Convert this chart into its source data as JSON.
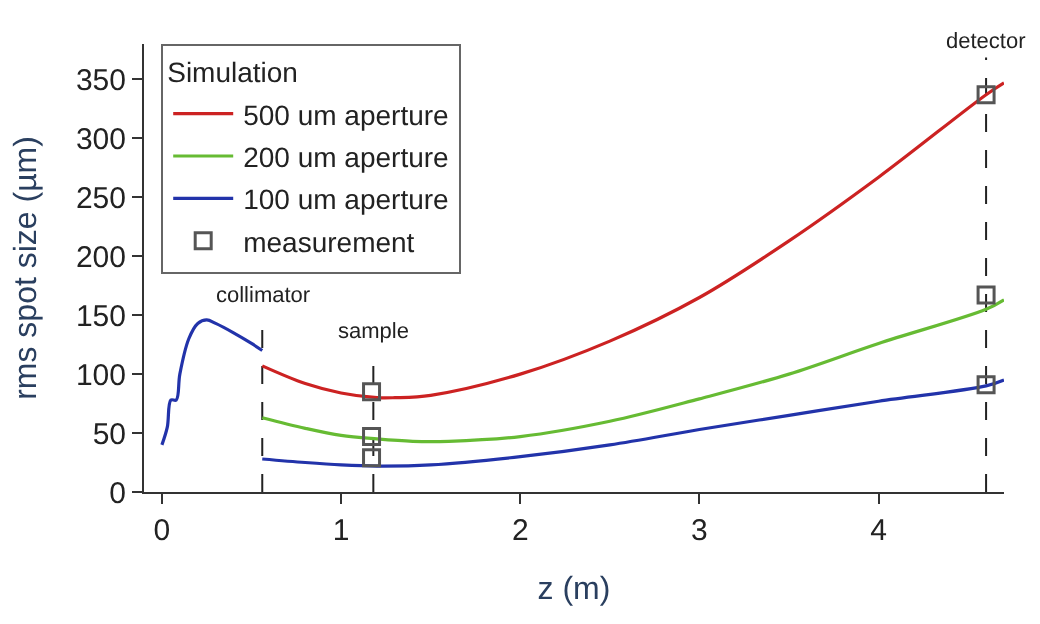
{
  "chart_data": {
    "type": "line",
    "xlabel": "z (m)",
    "ylabel": "rms spot size (µm)",
    "legend_title": "Simulation",
    "xlim": [
      -0.1,
      4.7
    ],
    "xticks": [
      0,
      1,
      2,
      3,
      4
    ],
    "ylim": [
      0,
      380
    ],
    "yticks": [
      0,
      50,
      100,
      150,
      200,
      250,
      300,
      350
    ],
    "grid": false,
    "legend": "top left",
    "series": [
      {
        "name": "500 um aperture",
        "color": "#cc2222",
        "x": [
          0.56,
          0.8,
          1.0,
          1.2,
          1.3,
          1.5,
          2.0,
          2.5,
          3.0,
          3.5,
          4.0,
          4.6,
          4.7
        ],
        "values": [
          107,
          92,
          84,
          80,
          80,
          82,
          100,
          128,
          165,
          213,
          267,
          337,
          347
        ]
      },
      {
        "name": "200 um aperture",
        "color": "#66bb33",
        "x": [
          0.56,
          0.8,
          1.0,
          1.2,
          1.4,
          1.6,
          2.0,
          2.5,
          3.0,
          3.5,
          4.0,
          4.6,
          4.7
        ],
        "values": [
          63,
          54,
          48,
          45,
          43,
          43,
          47,
          60,
          79,
          100,
          126,
          155,
          163
        ]
      },
      {
        "name": "100 um aperture",
        "color": "#2233aa",
        "x": [
          0.56,
          0.8,
          1.0,
          1.2,
          1.5,
          2.0,
          2.5,
          3.0,
          3.5,
          4.0,
          4.6,
          4.7
        ],
        "values": [
          28,
          25,
          23,
          22,
          23,
          30,
          40,
          53,
          65,
          77,
          90,
          95
        ]
      },
      {
        "color": "#2233aa",
        "x": [
          0.0,
          0.03,
          0.05,
          0.08,
          0.1,
          0.15,
          0.2,
          0.25,
          0.3,
          0.4,
          0.5,
          0.56
        ],
        "values": [
          40,
          55,
          78,
          78,
          100,
          130,
          143,
          146,
          143,
          135,
          126,
          120
        ]
      },
      {
        "name": "measurement",
        "type": "scatter",
        "marker": "square",
        "color": "#555555",
        "x": [
          1.17,
          1.17,
          1.17,
          4.6,
          4.6,
          4.6
        ],
        "values": [
          85,
          47,
          29,
          337,
          167,
          91
        ]
      }
    ],
    "ref_lines": [
      {
        "axis": "x",
        "value": 0.56,
        "label": "collimator",
        "color": "#222222",
        "line_style": "dashed"
      },
      {
        "axis": "x",
        "value": 1.18,
        "label": "sample",
        "color": "#222222",
        "line_style": "dashed"
      },
      {
        "axis": "x",
        "value": 4.6,
        "label": "detector",
        "color": "#222222",
        "line_style": "dashed"
      }
    ]
  }
}
